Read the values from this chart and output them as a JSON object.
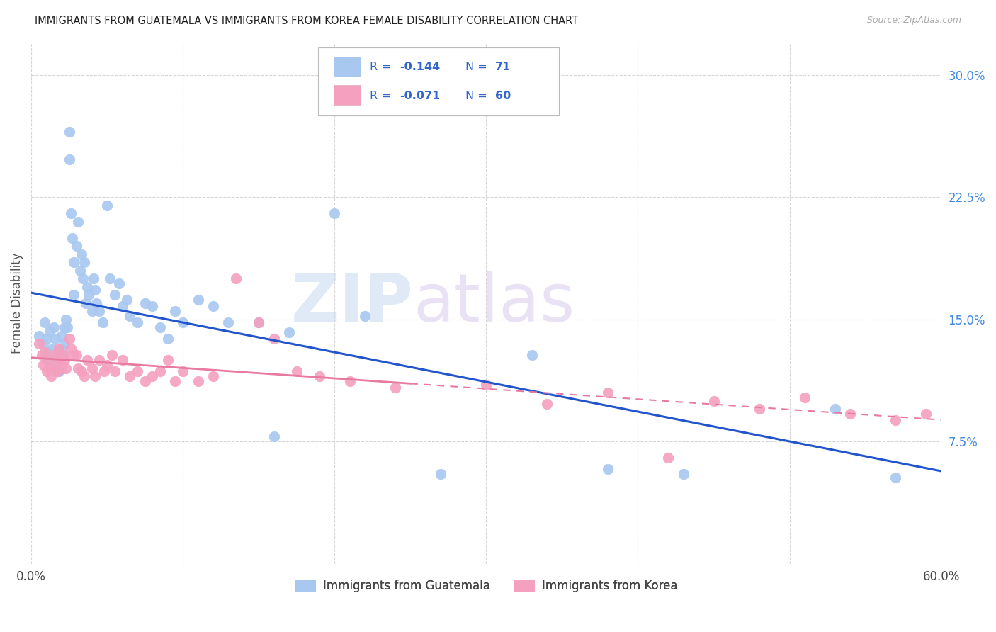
{
  "title": "IMMIGRANTS FROM GUATEMALA VS IMMIGRANTS FROM KOREA FEMALE DISABILITY CORRELATION CHART",
  "source": "Source: ZipAtlas.com",
  "ylabel": "Female Disability",
  "xlim": [
    0.0,
    0.6
  ],
  "ylim": [
    0.0,
    0.32
  ],
  "xtick_positions": [
    0.0,
    0.1,
    0.2,
    0.3,
    0.4,
    0.5,
    0.6
  ],
  "xticklabels": [
    "0.0%",
    "",
    "",
    "",
    "",
    "",
    "60.0%"
  ],
  "ytick_positions": [
    0.075,
    0.15,
    0.225,
    0.3
  ],
  "ytick_labels": [
    "7.5%",
    "15.0%",
    "22.5%",
    "30.0%"
  ],
  "guatemala_color": "#a8c8f0",
  "korea_color": "#f4a0be",
  "guatemala_line_color": "#2255cc",
  "korea_line_color": "#e87aa0",
  "background_color": "#ffffff",
  "watermark_zip": "ZIP",
  "watermark_atlas": "atlas",
  "guatemala_R": -0.144,
  "korea_R": -0.071,
  "guatemala_N": 71,
  "korea_N": 60,
  "legend_box_color": "#aaaaaa",
  "legend_text_color": "#3366cc",
  "title_color": "#222222",
  "source_color": "#aaaaaa",
  "grid_color": "#cccccc",
  "ylabel_color": "#555555",
  "guatemala_x": [
    0.005,
    0.008,
    0.009,
    0.01,
    0.01,
    0.011,
    0.012,
    0.013,
    0.014,
    0.015,
    0.015,
    0.016,
    0.017,
    0.018,
    0.018,
    0.02,
    0.02,
    0.021,
    0.022,
    0.022,
    0.023,
    0.024,
    0.025,
    0.025,
    0.026,
    0.027,
    0.028,
    0.028,
    0.03,
    0.031,
    0.032,
    0.033,
    0.034,
    0.035,
    0.036,
    0.037,
    0.038,
    0.04,
    0.041,
    0.042,
    0.043,
    0.045,
    0.047,
    0.05,
    0.052,
    0.055,
    0.058,
    0.06,
    0.063,
    0.065,
    0.07,
    0.075,
    0.08,
    0.085,
    0.09,
    0.095,
    0.1,
    0.11,
    0.12,
    0.13,
    0.15,
    0.16,
    0.17,
    0.2,
    0.22,
    0.27,
    0.33,
    0.38,
    0.43,
    0.53,
    0.57
  ],
  "guatemala_y": [
    0.14,
    0.135,
    0.148,
    0.125,
    0.138,
    0.13,
    0.143,
    0.128,
    0.132,
    0.122,
    0.145,
    0.138,
    0.125,
    0.13,
    0.118,
    0.14,
    0.132,
    0.128,
    0.145,
    0.135,
    0.15,
    0.145,
    0.265,
    0.248,
    0.215,
    0.2,
    0.185,
    0.165,
    0.195,
    0.21,
    0.18,
    0.19,
    0.175,
    0.185,
    0.16,
    0.17,
    0.165,
    0.155,
    0.175,
    0.168,
    0.16,
    0.155,
    0.148,
    0.22,
    0.175,
    0.165,
    0.172,
    0.158,
    0.162,
    0.152,
    0.148,
    0.16,
    0.158,
    0.145,
    0.138,
    0.155,
    0.148,
    0.162,
    0.158,
    0.148,
    0.148,
    0.078,
    0.142,
    0.215,
    0.152,
    0.055,
    0.128,
    0.058,
    0.055,
    0.095,
    0.053
  ],
  "korea_x": [
    0.005,
    0.007,
    0.008,
    0.009,
    0.01,
    0.011,
    0.012,
    0.013,
    0.015,
    0.016,
    0.017,
    0.018,
    0.019,
    0.02,
    0.021,
    0.022,
    0.023,
    0.025,
    0.026,
    0.028,
    0.03,
    0.031,
    0.033,
    0.035,
    0.037,
    0.04,
    0.042,
    0.045,
    0.048,
    0.05,
    0.053,
    0.055,
    0.06,
    0.065,
    0.07,
    0.075,
    0.08,
    0.085,
    0.09,
    0.095,
    0.1,
    0.11,
    0.12,
    0.135,
    0.15,
    0.16,
    0.175,
    0.19,
    0.21,
    0.24,
    0.3,
    0.34,
    0.38,
    0.42,
    0.45,
    0.48,
    0.51,
    0.54,
    0.57,
    0.59
  ],
  "korea_y": [
    0.135,
    0.128,
    0.122,
    0.13,
    0.118,
    0.125,
    0.12,
    0.115,
    0.128,
    0.122,
    0.118,
    0.132,
    0.125,
    0.12,
    0.128,
    0.125,
    0.12,
    0.138,
    0.132,
    0.128,
    0.128,
    0.12,
    0.118,
    0.115,
    0.125,
    0.12,
    0.115,
    0.125,
    0.118,
    0.122,
    0.128,
    0.118,
    0.125,
    0.115,
    0.118,
    0.112,
    0.115,
    0.118,
    0.125,
    0.112,
    0.118,
    0.112,
    0.115,
    0.175,
    0.148,
    0.138,
    0.118,
    0.115,
    0.112,
    0.108,
    0.11,
    0.098,
    0.105,
    0.065,
    0.1,
    0.095,
    0.102,
    0.092,
    0.088,
    0.092
  ]
}
